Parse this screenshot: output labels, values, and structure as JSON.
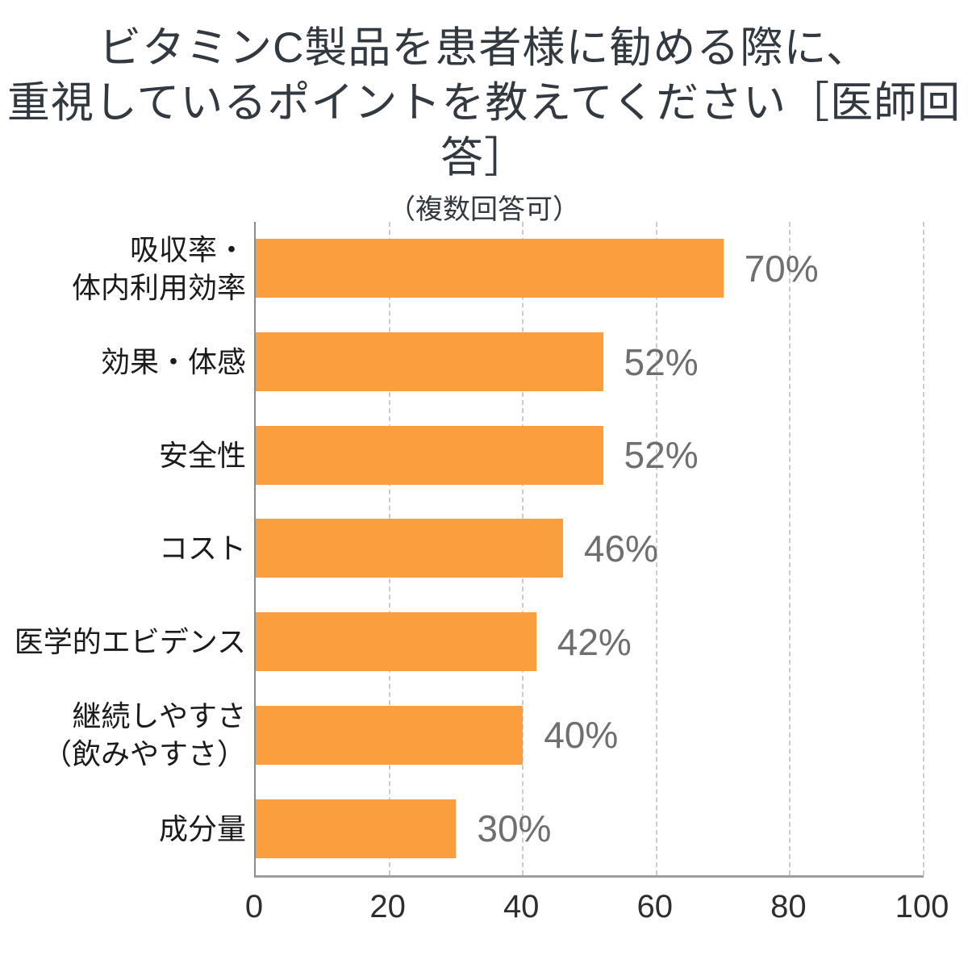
{
  "title": {
    "line1": "ビタミンC製品を患者様に勧める際に、",
    "line2": "重視しているポイントを教えてください［医師回答］",
    "note": "（複数回答可）"
  },
  "chart_data": {
    "type": "bar",
    "orientation": "horizontal",
    "title": "ビタミンC製品を患者様に勧める際に、重視しているポイントを教えてください［医師回答］（複数回答可）",
    "categories": [
      [
        "吸収率・",
        "体内利用効率"
      ],
      [
        "効果・体感"
      ],
      [
        "安全性"
      ],
      [
        "コスト"
      ],
      [
        "医学的エビデンス"
      ],
      [
        "継続しやすさ",
        "（飲みやすさ）"
      ],
      [
        "成分量"
      ]
    ],
    "values": [
      70,
      52,
      52,
      46,
      42,
      40,
      30
    ],
    "value_labels": [
      "70%",
      "52%",
      "52%",
      "46%",
      "42%",
      "40%",
      "30%"
    ],
    "x_ticks": [
      0,
      20,
      40,
      60,
      80,
      100
    ],
    "xlim": [
      0,
      100
    ],
    "grid": "vertical-dashed",
    "legend": "none",
    "bar_color": "#fa9e3e",
    "value_label_color": "#6f6f6f",
    "gridline_color": "#cccccc",
    "axis_line_color": "#9e9e9e",
    "category_text_color": "#1b1b1b",
    "title_text_color": "#333940"
  }
}
